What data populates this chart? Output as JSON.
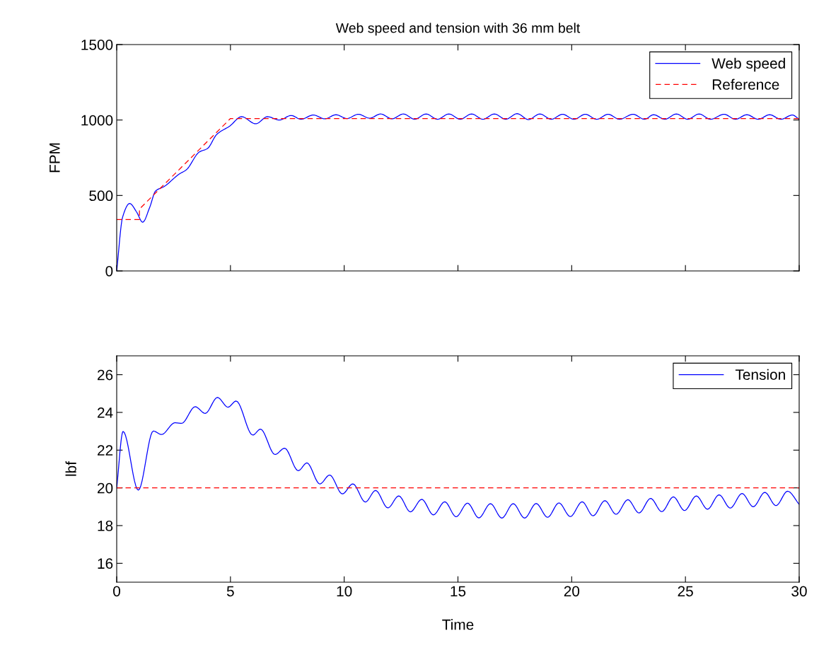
{
  "chart_data": [
    {
      "type": "line",
      "title": "Web speed and tension with 36 mm belt",
      "ylabel": "FPM",
      "xlim": [
        0,
        30
      ],
      "xticks": [
        0,
        5,
        10,
        15,
        20,
        25,
        30
      ],
      "ylim": [
        0,
        1500
      ],
      "yticks": [
        0,
        500,
        1000,
        1500
      ],
      "tick_labels": "y",
      "grid": false,
      "legend": "top right",
      "series": [
        {
          "name": "Web speed",
          "color": "#0000ff",
          "line_style": "solid",
          "x": [
            0,
            0.26,
            0.57,
            0.88,
            1.14,
            1.45,
            1.71,
            2.07,
            2.75,
            3.06,
            3.63,
            3.99,
            4.4,
            4.97,
            5.49,
            6.11,
            6.63,
            7.15,
            7.67,
            8.1,
            8.64,
            9.15,
            9.64,
            10.12,
            10.62,
            11.12,
            11.6,
            12.1,
            12.6,
            13.1,
            13.6,
            14.1,
            14.6,
            15.1,
            15.6,
            16.1,
            16.6,
            17.1,
            17.6,
            18.1,
            18.6,
            19.1,
            19.6,
            20.1,
            20.6,
            21.1,
            21.6,
            22.1,
            22.7,
            23.2,
            23.6,
            24.1,
            24.6,
            25.1,
            25.6,
            26.1,
            26.7,
            27.2,
            27.7,
            28.2,
            28.7,
            29.2,
            29.7,
            30
          ],
          "values": [
            0,
            357,
            447,
            389,
            323,
            421,
            530,
            558,
            642,
            670,
            788,
            811,
            905,
            960,
            1022,
            975,
            1022,
            1000,
            1030,
            1005,
            1033,
            1008,
            1035,
            1010,
            1038,
            1012,
            1040,
            1008,
            1040,
            1005,
            1040,
            1005,
            1040,
            1005,
            1040,
            1005,
            1040,
            1005,
            1042,
            1003,
            1040,
            1005,
            1038,
            1005,
            1038,
            1005,
            1038,
            1005,
            1038,
            1005,
            1035,
            1005,
            1040,
            1005,
            1040,
            1005,
            1038,
            1005,
            1035,
            1005,
            1035,
            1005,
            1033,
            1005
          ]
        },
        {
          "name": "Reference",
          "color": "#ff0000",
          "line_style": "dashed",
          "x": [
            0,
            1,
            1,
            5,
            30
          ],
          "values": [
            340,
            340,
            410,
            1010,
            1010
          ]
        }
      ]
    },
    {
      "type": "line",
      "xlabel": "Time",
      "ylabel": "lbf",
      "xlim": [
        0,
        30
      ],
      "xticks": [
        0,
        5,
        10,
        15,
        20,
        25,
        30
      ],
      "ylim": [
        15,
        27
      ],
      "yticks": [
        16,
        18,
        20,
        22,
        24,
        26
      ],
      "grid": false,
      "legend": "top right",
      "ref_lines": [
        {
          "axis": "y",
          "value": 20,
          "color": "#ff0000",
          "line_style": "dashed"
        }
      ],
      "series": [
        {
          "name": "Tension",
          "color": "#0000ff",
          "line_style": "solid",
          "x": [
            0,
            0.28,
            0.95,
            1.61,
            1.97,
            2.56,
            2.85,
            3.45,
            3.89,
            4.43,
            4.89,
            5.25,
            5.98,
            6.32,
            6.96,
            7.38,
            7.98,
            8.36,
            8.93,
            9.36,
            9.92,
            10.38,
            10.93,
            11.38,
            11.92,
            12.4,
            12.91,
            13.41,
            13.92,
            14.42,
            14.92,
            15.42,
            15.92,
            16.43,
            16.93,
            17.43,
            17.93,
            18.44,
            18.94,
            19.44,
            19.94,
            20.46,
            20.94,
            21.46,
            21.95,
            22.47,
            22.96,
            23.47,
            23.96,
            24.47,
            24.96,
            25.48,
            25.97,
            26.48,
            26.97,
            27.49,
            27.98,
            28.49,
            28.98,
            29.49,
            30
          ],
          "values": [
            20.0,
            22.99,
            19.88,
            23.01,
            22.83,
            23.45,
            23.42,
            24.3,
            23.95,
            24.79,
            24.28,
            24.6,
            22.8,
            23.11,
            21.77,
            22.1,
            20.91,
            21.32,
            20.21,
            20.68,
            19.68,
            20.21,
            19.25,
            19.86,
            18.94,
            19.57,
            18.73,
            19.39,
            18.57,
            19.26,
            18.47,
            19.19,
            18.41,
            19.16,
            18.4,
            19.16,
            18.4,
            19.17,
            18.44,
            19.2,
            18.48,
            19.26,
            18.52,
            19.32,
            18.6,
            19.37,
            18.67,
            19.44,
            18.74,
            19.52,
            18.8,
            19.57,
            18.87,
            19.63,
            18.93,
            19.7,
            19.0,
            19.76,
            19.06,
            19.82,
            19.13
          ]
        }
      ]
    }
  ]
}
